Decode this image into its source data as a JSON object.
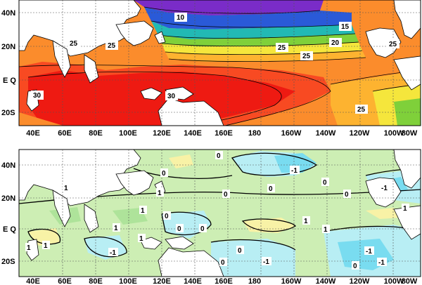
{
  "panels": [
    {
      "id": "sst_climatology",
      "y_ticks": [
        "40N",
        "20N",
        "E Q",
        "20S"
      ],
      "x_ticks": [
        "40E",
        "60E",
        "80E",
        "100E",
        "120E",
        "140E",
        "160E",
        "180",
        "160W",
        "140W",
        "120W",
        "100W",
        "80W"
      ],
      "contour_labels": [
        "10",
        "15",
        "20",
        "25",
        "25",
        "25",
        "25",
        "25",
        "30",
        "30",
        "25"
      ],
      "colors": {
        "warm_pool": "#ee1a12",
        "warm": "#f84a22",
        "orange": "#fb8c2c",
        "amber": "#fdb330",
        "yellow": "#f5e63c",
        "green": "#7fd03a",
        "teal": "#22b9b4",
        "blue": "#2a5ad8",
        "purple": "#7a2cc8",
        "land": "#ffffff"
      }
    },
    {
      "id": "sst_anomaly",
      "y_ticks": [
        "40N",
        "20N",
        "E Q",
        "20S"
      ],
      "x_ticks": [
        "40E",
        "60E",
        "80E",
        "100E",
        "120E",
        "140E",
        "160E",
        "180",
        "160W",
        "140W",
        "120W",
        "100W",
        "80W"
      ],
      "contour_labels": [
        "0",
        "-1",
        "0",
        "0",
        "1",
        "0",
        "0",
        "0",
        "1",
        "1",
        "0",
        "-1",
        "1",
        "1",
        "1",
        "1",
        "1",
        "-1",
        "0",
        "0",
        "0",
        "-1",
        "-1",
        "-1",
        "0",
        "1",
        "1",
        "0"
      ],
      "colors": {
        "light_green": "#cdeeb4",
        "green": "#aee39a",
        "light_blue": "#b8eef4",
        "blue": "#79dcf0",
        "yellow": "#f8f2a6",
        "land": "#ffffff"
      }
    }
  ]
}
